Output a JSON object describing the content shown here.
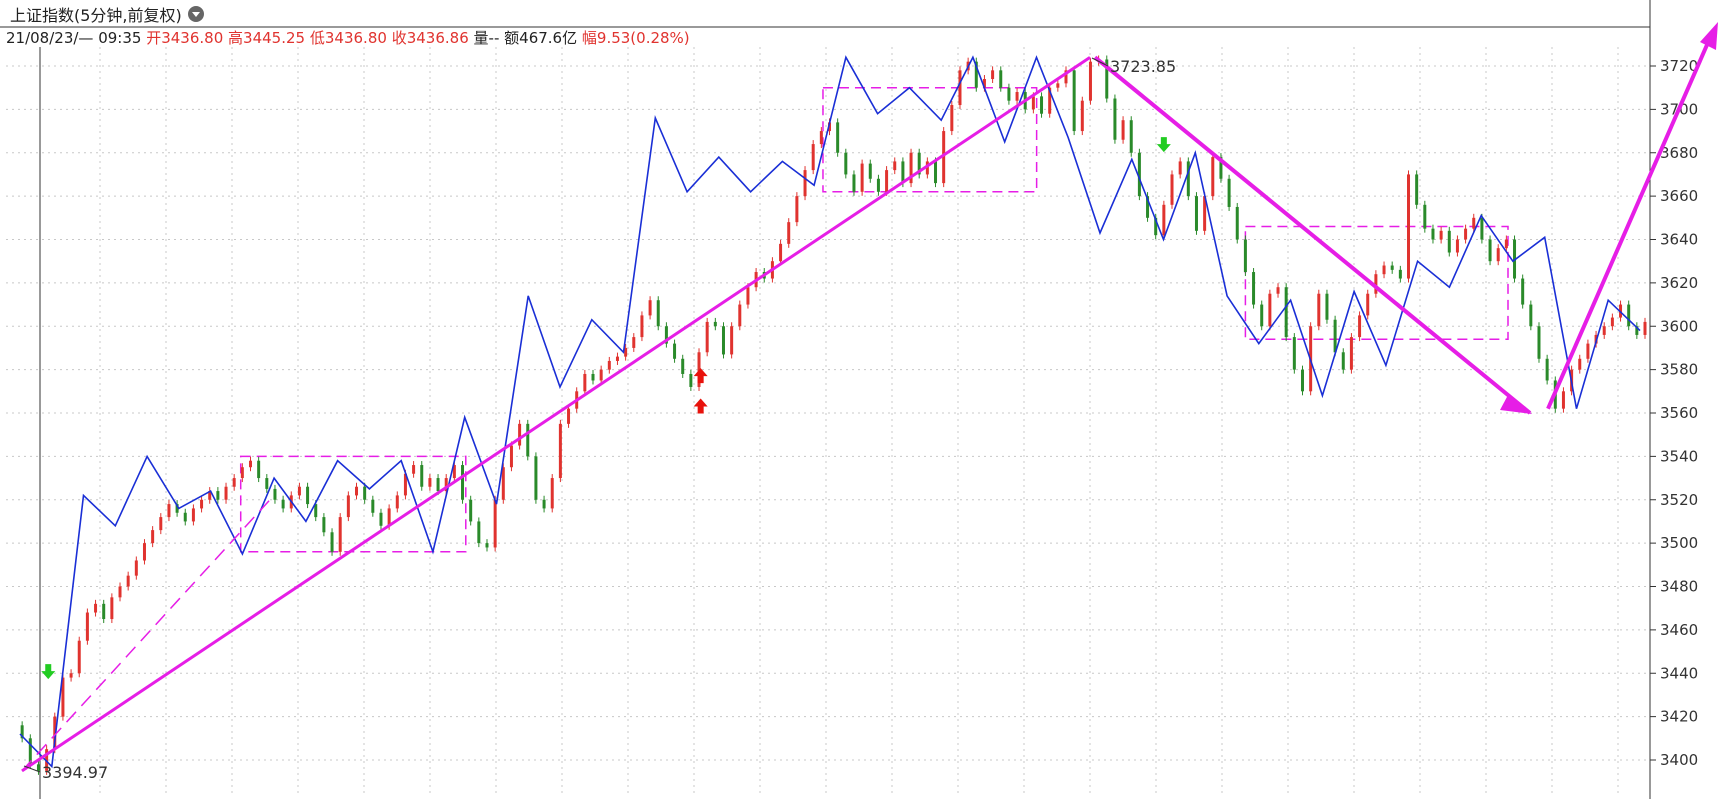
{
  "header": {
    "title": "上证指数(5分钟,前复权)",
    "datetime": "21/08/23/— 09:35",
    "open_label": "开",
    "open_value": "3436.80",
    "high_label": "高",
    "high_value": "3445.25",
    "low_label": "低",
    "low_value": "3436.80",
    "close_label": "收",
    "close_value": "3436.86",
    "volume_label": "量",
    "volume_value": "--",
    "amount_label": "额",
    "amount_value": "467.6亿",
    "range_label": "幅",
    "range_value": "9.53(0.28%)"
  },
  "colors": {
    "up": "#e0332f",
    "down": "#2a8a2a",
    "zigzag": "#1a2fd6",
    "trend": "#e61ee6",
    "grid": "#c8c8c8"
  },
  "chart_data": {
    "type": "line",
    "ylim": [
      3390,
      3732
    ],
    "yticks": [
      "3400",
      "3420",
      "3440",
      "3460",
      "3480",
      "3500",
      "3520",
      "3540",
      "3560",
      "3580",
      "3600",
      "3620",
      "3640",
      "3660",
      "3680",
      "3700",
      "3720"
    ],
    "annotations": {
      "low_label": "3394.97",
      "high_label": "3723.85"
    },
    "series": [
      {
        "values": [
          3416,
          3410,
          3398,
          3395,
          3405,
          3420,
          3438,
          3440,
          3455,
          3468,
          3472,
          3465,
          3475,
          3480,
          3485,
          3492,
          3500,
          3506,
          3512,
          3518,
          3514,
          3510,
          3516,
          3520,
          3524,
          3520,
          3526,
          3530,
          3535,
          3538,
          3530,
          3525,
          3520,
          3516,
          3522,
          3526,
          3518,
          3512,
          3505,
          3496,
          3512,
          3522,
          3526,
          3520,
          3514,
          3508,
          3516,
          3522,
          3532,
          3536,
          3526,
          3530,
          3524,
          3530,
          3536,
          3520,
          3510,
          3500,
          3498,
          3520,
          3535,
          3545,
          3555,
          3540,
          3520,
          3516,
          3530,
          3555,
          3562,
          3570,
          3578,
          3575,
          3580,
          3584,
          3586,
          3590,
          3595,
          3605,
          3612,
          3600,
          3592,
          3585,
          3578,
          3572,
          3588,
          3602,
          3600,
          3587,
          3600,
          3610,
          3618,
          3625,
          3622,
          3630,
          3638,
          3648,
          3660,
          3672,
          3684,
          3690,
          3694,
          3680,
          3670,
          3662,
          3675,
          3668,
          3662,
          3672,
          3676,
          3666,
          3680,
          3670,
          3676,
          3666,
          3690,
          3702,
          3718,
          3722,
          3710,
          3714,
          3718,
          3710,
          3704,
          3708,
          3700,
          3706,
          3698,
          3710,
          3712,
          3718,
          3690,
          3704,
          3722,
          3723,
          3705,
          3686,
          3695,
          3680,
          3660,
          3650,
          3642,
          3656,
          3670,
          3676,
          3660,
          3644,
          3660,
          3678,
          3668,
          3655,
          3640,
          3625,
          3610,
          3600,
          3615,
          3618,
          3595,
          3580,
          3570,
          3600,
          3615,
          3603,
          3588,
          3580,
          3595,
          3605,
          3615,
          3624,
          3628,
          3626,
          3622,
          3670,
          3656,
          3645,
          3640,
          3644,
          3634,
          3640,
          3645,
          3650,
          3640,
          3630,
          3636,
          3640,
          3622,
          3610,
          3600,
          3585,
          3575,
          3562,
          3570,
          3580,
          3585,
          3592,
          3596,
          3600,
          3604,
          3610,
          3600,
          3596,
          3602
        ]
      }
    ],
    "zigzag_values": [
      3412,
      3397,
      3522,
      3508,
      3540,
      3516,
      3524,
      3495,
      3530,
      3510,
      3538,
      3525,
      3538,
      3496,
      3558,
      3518,
      3614,
      3572,
      3603,
      3588,
      3696,
      3662,
      3678,
      3662,
      3676,
      3665,
      3724,
      3698,
      3710,
      3695,
      3724,
      3685,
      3724,
      3687,
      3643,
      3677,
      3640,
      3680,
      3614,
      3592,
      3612,
      3568,
      3616,
      3582,
      3630,
      3618,
      3651,
      3630,
      3641,
      3562,
      3612,
      3598
    ],
    "boxes": [
      {
        "x0": 0.139,
        "x1": 0.277,
        "y0": 3540,
        "y1": 3496
      },
      {
        "x0": 0.496,
        "x1": 0.627,
        "y0": 3710,
        "y1": 3662
      },
      {
        "x0": 0.755,
        "x1": 0.916,
        "y0": 3646,
        "y1": 3594
      }
    ],
    "signals": [
      {
        "type": "buy",
        "x": 0.421,
        "y": 3577
      },
      {
        "type": "buy",
        "x": 0.421,
        "y": 3563
      },
      {
        "type": "sell",
        "x": 0.705,
        "y": 3684
      },
      {
        "type": "sell",
        "x": 0.021,
        "y": 3441
      }
    ]
  }
}
